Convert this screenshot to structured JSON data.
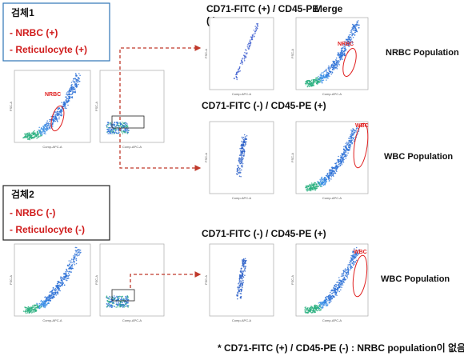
{
  "sample1": {
    "title": "검체1",
    "lines": [
      "- NRBC  (+)",
      "- Reticulocyte (+)"
    ]
  },
  "sample2": {
    "title": "검체2",
    "lines": [
      "- NRBC  (-)",
      "- Reticulocyte (-)"
    ]
  },
  "headings": {
    "row1": [
      "CD71-FITC (+) / CD45-PE",
      "(-)"
    ],
    "merge": "Merge",
    "row2": "CD71-FITC (-) / CD45-PE (+)",
    "row3": "CD71-FITC (-) / CD45-PE (+)"
  },
  "populations": [
    "NRBC Population",
    "WBC Population",
    "WBC Population"
  ],
  "gates": {
    "left": "NRBC",
    "merge1": "NRBC",
    "merge2": "WBC",
    "merge3": "WBC"
  },
  "axes": {
    "x": "Comp-APC-A",
    "y": "FSC-A"
  },
  "footnote": "* CD71-FITC (+) / CD45-PE (-) : NRBC population이 없음"
}
